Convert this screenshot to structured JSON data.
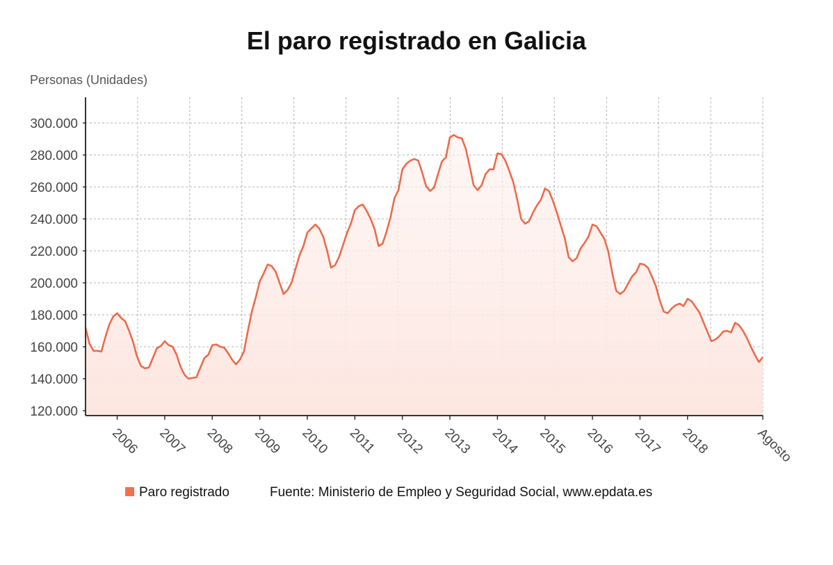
{
  "chart_data": {
    "type": "area",
    "title": "El paro registrado en Galicia",
    "ylabel": "Personas (Unidades)",
    "xlabel": "",
    "ylim": [
      117000,
      310000
    ],
    "grid": true,
    "legend_placement": "bottom",
    "colors": {
      "line": "#ee6a4a",
      "fill": "#fde9e4",
      "legend": "#f07050",
      "axis": "#333333",
      "grid": "#b0b0b0"
    },
    "y_ticks": [
      120000,
      140000,
      160000,
      180000,
      200000,
      220000,
      240000,
      260000,
      280000,
      300000
    ],
    "y_tick_labels": [
      "120.000",
      "140.000",
      "160.000",
      "180.000",
      "200.000",
      "220.000",
      "240.000",
      "260.000",
      "280.000",
      "300.000"
    ],
    "x_tick_labels": [
      {
        "x": "2006-01",
        "label": "2006"
      },
      {
        "x": "2007-01",
        "label": "2007"
      },
      {
        "x": "2008-01",
        "label": "2008"
      },
      {
        "x": "2009-01",
        "label": "2009"
      },
      {
        "x": "2010-01",
        "label": "2010"
      },
      {
        "x": "2011-01",
        "label": "2011"
      },
      {
        "x": "2012-01",
        "label": "2012"
      },
      {
        "x": "2013-01",
        "label": "2013"
      },
      {
        "x": "2014-01",
        "label": "2014"
      },
      {
        "x": "2015-01",
        "label": "2015"
      },
      {
        "x": "2016-01",
        "label": "2016"
      },
      {
        "x": "2017-01",
        "label": "2017"
      },
      {
        "x": "2018-01",
        "label": "2018"
      },
      {
        "x": "2019-08",
        "label": "Agosto"
      }
    ],
    "x": [
      "2005-05",
      "2005-06",
      "2005-07",
      "2005-08",
      "2005-09",
      "2005-10",
      "2005-11",
      "2005-12",
      "2006-01",
      "2006-02",
      "2006-03",
      "2006-04",
      "2006-05",
      "2006-06",
      "2006-07",
      "2006-08",
      "2006-09",
      "2006-10",
      "2006-11",
      "2006-12",
      "2007-01",
      "2007-02",
      "2007-03",
      "2007-04",
      "2007-05",
      "2007-06",
      "2007-07",
      "2007-08",
      "2007-09",
      "2007-10",
      "2007-11",
      "2007-12",
      "2008-01",
      "2008-02",
      "2008-03",
      "2008-04",
      "2008-05",
      "2008-06",
      "2008-07",
      "2008-08",
      "2008-09",
      "2008-10",
      "2008-11",
      "2008-12",
      "2009-01",
      "2009-02",
      "2009-03",
      "2009-04",
      "2009-05",
      "2009-06",
      "2009-07",
      "2009-08",
      "2009-09",
      "2009-10",
      "2009-11",
      "2009-12",
      "2010-01",
      "2010-02",
      "2010-03",
      "2010-04",
      "2010-05",
      "2010-06",
      "2010-07",
      "2010-08",
      "2010-09",
      "2010-10",
      "2010-11",
      "2010-12",
      "2011-01",
      "2011-02",
      "2011-03",
      "2011-04",
      "2011-05",
      "2011-06",
      "2011-07",
      "2011-08",
      "2011-09",
      "2011-10",
      "2011-11",
      "2011-12",
      "2012-01",
      "2012-02",
      "2012-03",
      "2012-04",
      "2012-05",
      "2012-06",
      "2012-07",
      "2012-08",
      "2012-09",
      "2012-10",
      "2012-11",
      "2012-12",
      "2013-01",
      "2013-02",
      "2013-03",
      "2013-04",
      "2013-05",
      "2013-06",
      "2013-07",
      "2013-08",
      "2013-09",
      "2013-10",
      "2013-11",
      "2013-12",
      "2014-01",
      "2014-02",
      "2014-03",
      "2014-04",
      "2014-05",
      "2014-06",
      "2014-07",
      "2014-08",
      "2014-09",
      "2014-10",
      "2014-11",
      "2014-12",
      "2015-01",
      "2015-02",
      "2015-03",
      "2015-04",
      "2015-05",
      "2015-06",
      "2015-07",
      "2015-08",
      "2015-09",
      "2015-10",
      "2015-11",
      "2015-12",
      "2016-01",
      "2016-02",
      "2016-03",
      "2016-04",
      "2016-05",
      "2016-06",
      "2016-07",
      "2016-08",
      "2016-09",
      "2016-10",
      "2016-11",
      "2016-12",
      "2017-01",
      "2017-02",
      "2017-03",
      "2017-04",
      "2017-05",
      "2017-06",
      "2017-07",
      "2017-08",
      "2017-09",
      "2017-10",
      "2017-11",
      "2017-12",
      "2018-01",
      "2018-02",
      "2018-03",
      "2018-04",
      "2018-05",
      "2018-06",
      "2018-07",
      "2018-08",
      "2018-09",
      "2018-10",
      "2018-11",
      "2018-12",
      "2019-01",
      "2019-02",
      "2019-03",
      "2019-04",
      "2019-05",
      "2019-06",
      "2019-07",
      "2019-08"
    ],
    "series": [
      {
        "name": "Paro registrado",
        "values": [
          172000,
          162000,
          157500,
          157500,
          157000,
          166000,
          174000,
          179000,
          181000,
          178000,
          176000,
          170000,
          163000,
          154000,
          148000,
          146500,
          147000,
          153000,
          159000,
          160500,
          163500,
          161000,
          160000,
          155000,
          147500,
          142500,
          140000,
          140500,
          141000,
          147000,
          153000,
          155000,
          161000,
          161500,
          160000,
          159500,
          156000,
          152000,
          149000,
          152000,
          157000,
          170000,
          182000,
          191000,
          201000,
          206000,
          211500,
          210500,
          207000,
          200000,
          193000,
          195500,
          200000,
          208500,
          217000,
          223000,
          231500,
          234000,
          236500,
          234000,
          229000,
          220000,
          209500,
          211000,
          216000,
          223500,
          231000,
          237000,
          245500,
          248000,
          249000,
          245000,
          240000,
          233500,
          223000,
          224500,
          232000,
          241000,
          253000,
          258000,
          271000,
          274500,
          276500,
          277500,
          276500,
          269000,
          260500,
          257500,
          259500,
          268000,
          276000,
          278500,
          291000,
          292500,
          291000,
          290500,
          284000,
          273000,
          261000,
          258000,
          261000,
          268000,
          271000,
          271000,
          281000,
          280500,
          276500,
          270000,
          263000,
          252000,
          240000,
          237000,
          238500,
          244000,
          248500,
          252000,
          259000,
          257500,
          251500,
          244000,
          236000,
          228000,
          216000,
          213500,
          215500,
          221500,
          225000,
          229000,
          236500,
          235500,
          231500,
          227500,
          219500,
          206000,
          195000,
          193000,
          195000,
          199500,
          204000,
          206500,
          212000,
          211500,
          209500,
          204000,
          198000,
          189000,
          182000,
          181000,
          184000,
          186000,
          187000,
          185500,
          190000,
          188500,
          185000,
          181500,
          175500,
          169500,
          163500,
          164500,
          166500,
          169500,
          170000,
          169000,
          175000,
          173500,
          170000,
          165500,
          160000,
          155000,
          150500,
          153500
        ]
      }
    ],
    "legend": [
      "Paro registrado"
    ],
    "source": "Fuente: Ministerio de Empleo y Seguridad Social, www.epdata.es"
  }
}
